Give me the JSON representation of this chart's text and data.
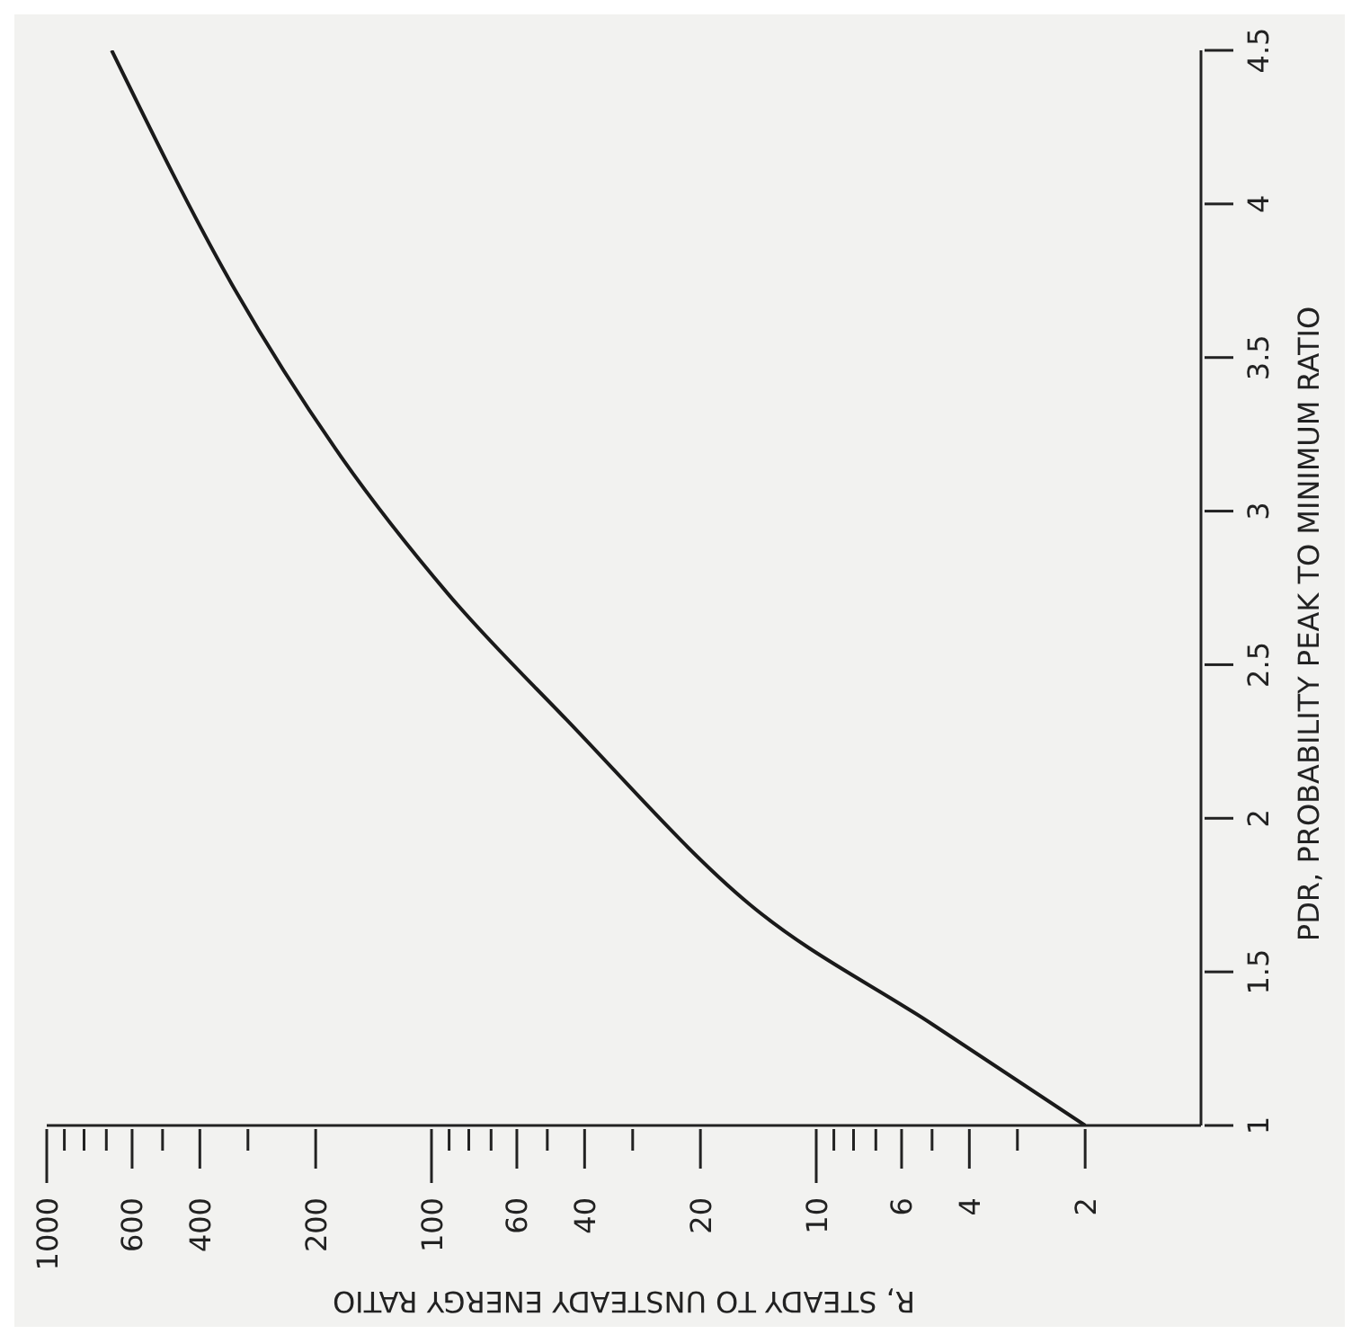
{
  "chart_data": {
    "type": "line",
    "xlabel": "R, STEADY TO UNSTEADY ENERGY RATIO",
    "ylabel": "PDR, PROBABILITY PEAK TO MINIMUM RATIO",
    "x": [
      2,
      5,
      14.9,
      44.5,
      90.5,
      177,
      324,
      678
    ],
    "series": [
      {
        "color": "#1a1a1a",
        "values": [
          1,
          1.33,
          1.72,
          2.32,
          2.73,
          3.2,
          3.72,
          4.5
        ]
      }
    ],
    "log": "x",
    "xlim": [
      1000,
      1
    ],
    "xticks": [
      1000,
      {
        "value": 900,
        "label": null
      },
      {
        "value": 800,
        "label": null
      },
      {
        "value": 700,
        "label": null
      },
      600,
      {
        "value": 500,
        "label": null
      },
      400,
      {
        "value": 300,
        "label": null
      },
      200,
      100,
      {
        "value": 90,
        "label": null
      },
      {
        "value": 80,
        "label": null
      },
      {
        "value": 70,
        "label": null
      },
      60,
      {
        "value": 50,
        "label": null
      },
      40,
      {
        "value": 30,
        "label": null
      },
      20,
      10,
      {
        "value": 9,
        "label": null
      },
      {
        "value": 8,
        "label": null
      },
      {
        "value": 7,
        "label": null
      },
      6,
      {
        "value": 5,
        "label": null
      },
      4,
      {
        "value": 3,
        "label": null
      },
      2
    ],
    "ylim": [
      1,
      4.5
    ],
    "yticks": [
      1,
      1.5,
      2,
      2.5,
      3,
      3.5,
      4,
      4.5
    ],
    "grid": false
  }
}
